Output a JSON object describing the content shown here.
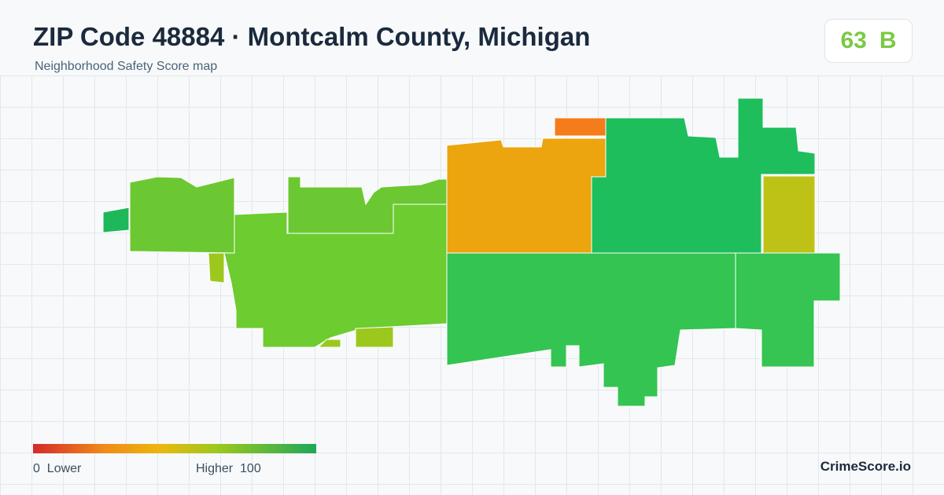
{
  "header": {
    "title": "ZIP Code 48884 · Montcalm County, Michigan",
    "subtitle": "Neighborhood Safety Score map"
  },
  "score": {
    "value": 63,
    "grade": "B"
  },
  "legend": {
    "min": 0,
    "min_label": "Lower",
    "max_label": "Higher",
    "max": 100
  },
  "brand": "CrimeScore.io"
}
